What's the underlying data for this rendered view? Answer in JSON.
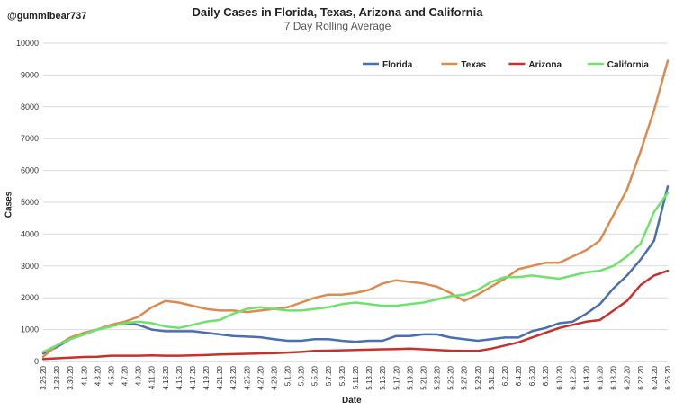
{
  "handle": "@gummibear737",
  "chart_data": {
    "type": "line",
    "title": "Daily Cases in Florida, Texas, Arizona and California",
    "subtitle": "7 Day Rolling Average",
    "xlabel": "Date",
    "ylabel": "Cases",
    "ylim": [
      0,
      10000
    ],
    "yticks": [
      0,
      1000,
      2000,
      3000,
      4000,
      5000,
      6000,
      7000,
      8000,
      9000,
      10000
    ],
    "xticks": [
      "3.26.20",
      "3.28.20",
      "3.30.20",
      "4.1.20",
      "4.3.20",
      "4.5.20",
      "4.7.20",
      "4.9.20",
      "4.11.20",
      "4.13.20",
      "4.15.20",
      "4.17.20",
      "4.19.20",
      "4.21.20",
      "4.23.20",
      "4.25.20",
      "4.27.20",
      "4.29.20",
      "5.1.20",
      "5.3.20",
      "5.5.20",
      "5.7.20",
      "5.9.20",
      "5.11.20",
      "5.13.20",
      "5.15.20",
      "5.17.20",
      "5.19.20",
      "5.21.20",
      "5.23.20",
      "5.25.20",
      "5.27.20",
      "5.29.20",
      "5.31.20",
      "6.2.20",
      "6.4.20",
      "6.6.20",
      "6.8.20",
      "6.10.20",
      "6.12.20",
      "6.14.20",
      "6.16.20",
      "6.18.20",
      "6.20.20",
      "6.22.20",
      "6.24.20",
      "6.26.20"
    ],
    "grid": "horizontal",
    "legend_position": "top-right",
    "series": [
      {
        "name": "Florida",
        "color": "#4A6FAE",
        "values": [
          250,
          450,
          700,
          850,
          1000,
          1150,
          1200,
          1150,
          1000,
          950,
          950,
          950,
          900,
          850,
          800,
          780,
          760,
          700,
          650,
          650,
          700,
          700,
          650,
          620,
          650,
          650,
          800,
          800,
          850,
          850,
          750,
          700,
          650,
          700,
          750,
          750,
          950,
          1050,
          1200,
          1250,
          1500,
          1800,
          2300,
          2700,
          3200,
          3800,
          5500
        ]
      },
      {
        "name": "Texas",
        "color": "#DB8B4D",
        "values": [
          150,
          500,
          750,
          900,
          1000,
          1150,
          1250,
          1400,
          1700,
          1900,
          1850,
          1750,
          1650,
          1600,
          1600,
          1550,
          1600,
          1650,
          1700,
          1850,
          2000,
          2100,
          2100,
          2150,
          2250,
          2450,
          2550,
          2500,
          2450,
          2350,
          2150,
          1900,
          2100,
          2350,
          2600,
          2900,
          3000,
          3100,
          3100,
          3300,
          3500,
          3800,
          4600,
          5400,
          6600,
          7900,
          9450
        ]
      },
      {
        "name": "Arizona",
        "color": "#C8302B",
        "values": [
          80,
          100,
          120,
          140,
          150,
          180,
          180,
          180,
          190,
          180,
          180,
          190,
          200,
          220,
          230,
          240,
          250,
          260,
          280,
          300,
          330,
          340,
          350,
          360,
          370,
          380,
          390,
          400,
          380,
          360,
          340,
          330,
          330,
          400,
          500,
          600,
          750,
          900,
          1050,
          1150,
          1250,
          1300,
          1600,
          1900,
          2400,
          2700,
          2850
        ]
      },
      {
        "name": "California",
        "color": "#6EE36B",
        "values": [
          300,
          500,
          700,
          850,
          1000,
          1100,
          1200,
          1250,
          1200,
          1100,
          1050,
          1150,
          1250,
          1300,
          1500,
          1650,
          1700,
          1650,
          1600,
          1600,
          1650,
          1700,
          1800,
          1850,
          1800,
          1750,
          1750,
          1800,
          1850,
          1950,
          2050,
          2100,
          2250,
          2500,
          2650,
          2650,
          2700,
          2650,
          2600,
          2700,
          2800,
          2850,
          3000,
          3300,
          3700,
          4700,
          5300
        ]
      }
    ]
  }
}
